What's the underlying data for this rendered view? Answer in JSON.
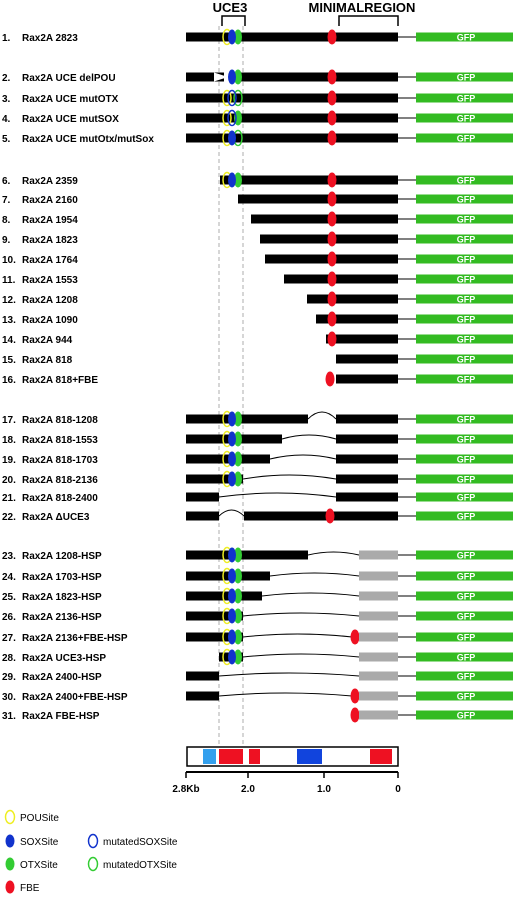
{
  "headers": {
    "uce3": "UCE3",
    "minimal_region": "MINIMALREGION"
  },
  "gfp_label": "GFP",
  "constructs": [
    {
      "num": "1.",
      "name": "Rax2A 2823"
    },
    {
      "num": "2.",
      "name": "Rax2A UCE delPOU"
    },
    {
      "num": "3.",
      "name": "Rax2A UCE mutOTX"
    },
    {
      "num": "4.",
      "name": "Rax2A UCE mutSOX"
    },
    {
      "num": "5.",
      "name": "Rax2A UCE mutOtx/mutSox"
    },
    {
      "num": "6.",
      "name": "Rax2A 2359"
    },
    {
      "num": "7.",
      "name": "Rax2A 2160"
    },
    {
      "num": "8.",
      "name": "Rax2A 1954"
    },
    {
      "num": "9.",
      "name": "Rax2A 1823"
    },
    {
      "num": "10.",
      "name": "Rax2A 1764"
    },
    {
      "num": "11.",
      "name": "Rax2A 1553"
    },
    {
      "num": "12.",
      "name": "Rax2A 1208"
    },
    {
      "num": "13.",
      "name": "Rax2A 1090"
    },
    {
      "num": "14.",
      "name": "Rax2A 944"
    },
    {
      "num": "15.",
      "name": "Rax2A 818"
    },
    {
      "num": "16.",
      "name": "Rax2A 818+FBE"
    },
    {
      "num": "17.",
      "name": "Rax2A  818-1208"
    },
    {
      "num": "18.",
      "name": "Rax2A 818-1553"
    },
    {
      "num": "19.",
      "name": "Rax2A 818-1703"
    },
    {
      "num": "20.",
      "name": "Rax2A 818-2136"
    },
    {
      "num": "21.",
      "name": "Rax2A 818-2400"
    },
    {
      "num": "22.",
      "name": "Rax2A ΔUCE3"
    },
    {
      "num": "23.",
      "name": "Rax2A 1208-HSP"
    },
    {
      "num": "24.",
      "name": "Rax2A 1703-HSP"
    },
    {
      "num": "25.",
      "name": "Rax2A 1823-HSP"
    },
    {
      "num": "26.",
      "name": "Rax2A 2136-HSP"
    },
    {
      "num": "27.",
      "name": "Rax2A 2136+FBE-HSP"
    },
    {
      "num": "28.",
      "name": "Rax2A UCE3-HSP"
    },
    {
      "num": "29.",
      "name": "Rax2A 2400-HSP"
    },
    {
      "num": "30.",
      "name": "Rax2A 2400+FBE-HSP"
    },
    {
      "num": "31.",
      "name": "Rax2A FBE-HSP"
    }
  ],
  "axis": {
    "ticks": [
      "2.8Kb",
      "2.0",
      "1.0",
      "0"
    ]
  },
  "legend": {
    "pou": "POUSite",
    "sox": "SOXSite",
    "otx": "OTXSite",
    "fbe": "FBE",
    "mut_sox": "mutatedSOXSite",
    "mut_otx": "mutatedOTXSite"
  },
  "colors": {
    "dna": "#000000",
    "gfp": "#33bb22",
    "hsp": "#aaaaaa",
    "pou": "#eeee22",
    "sox": "#1133cc",
    "otx": "#33cc33",
    "fbe": "#ee1122",
    "map_blue_light": "#33a0ee",
    "map_blue": "#1144dd"
  }
}
